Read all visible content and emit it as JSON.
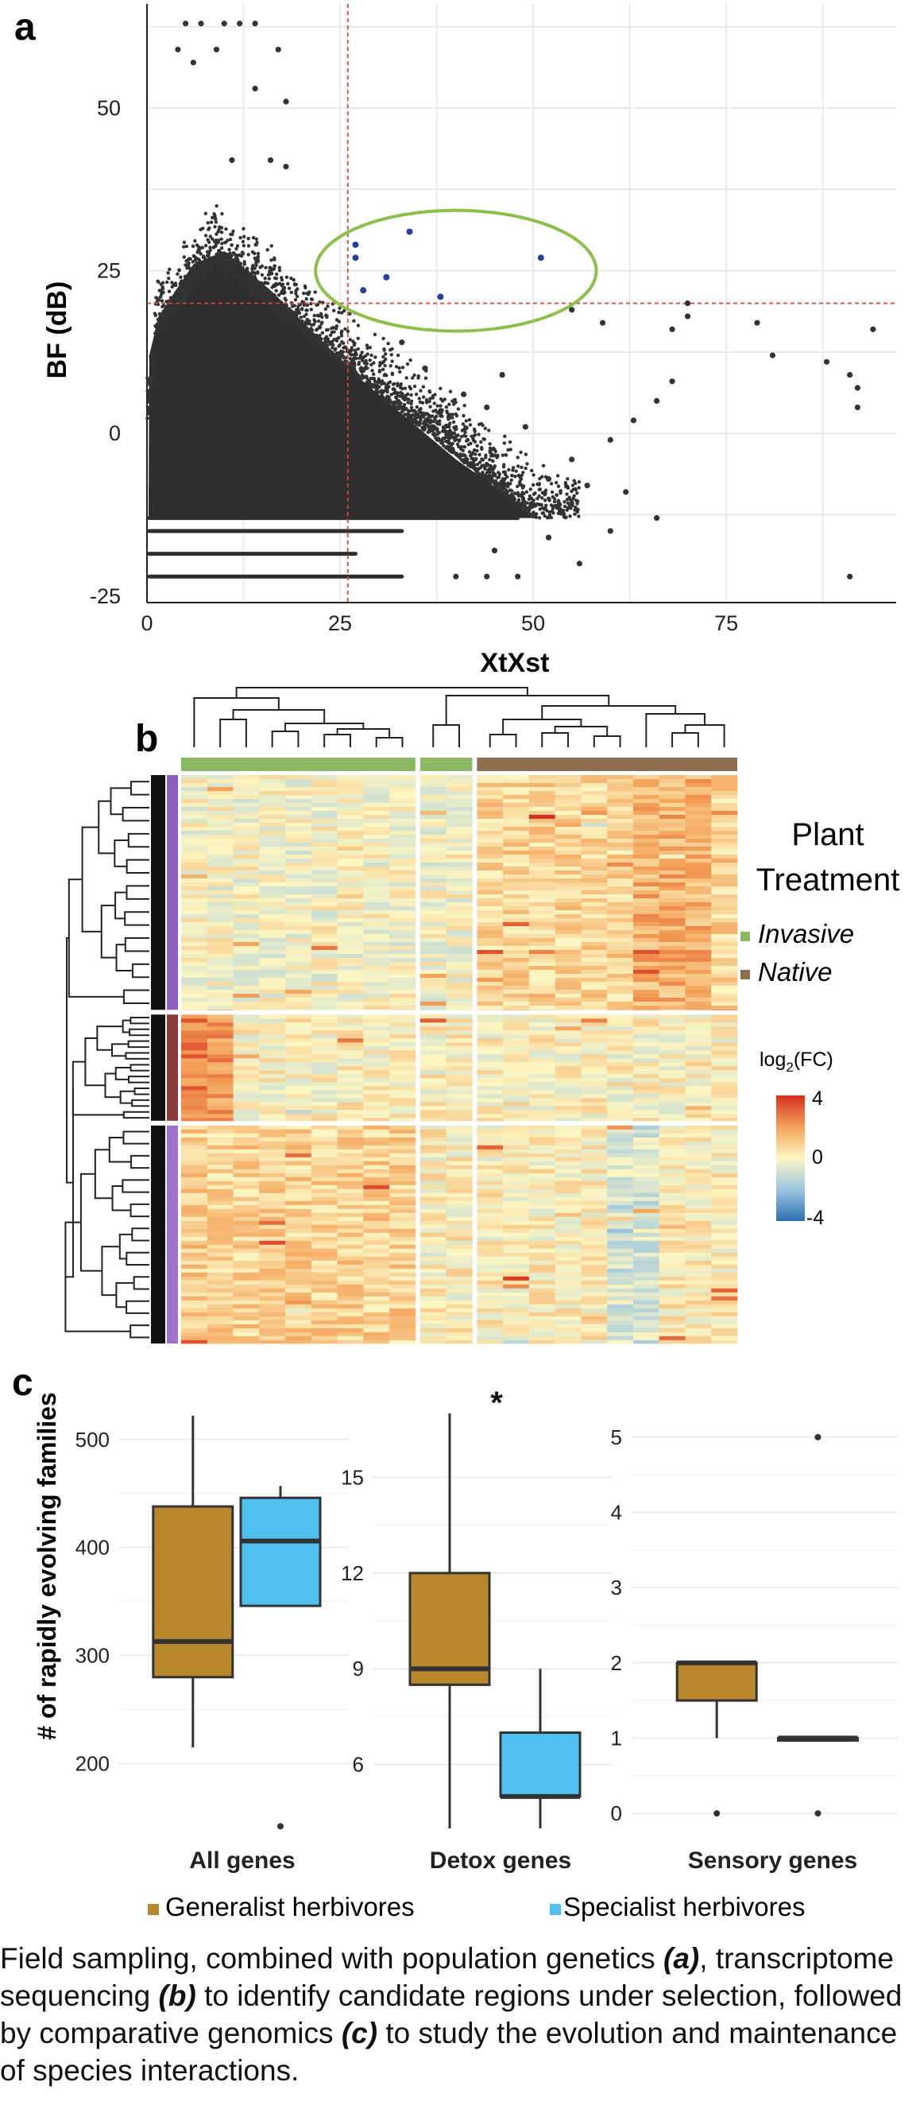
{
  "panel_labels": [
    "a",
    "b",
    "c"
  ],
  "chart_data": [
    {
      "type": "scatter",
      "panel": "a",
      "xlabel": "XtXst",
      "ylabel": "BF (dB)",
      "xlim": [
        0,
        97
      ],
      "ylim": [
        -26,
        66
      ],
      "xticks": [
        0,
        25,
        50,
        75
      ],
      "yticks": [
        -25,
        0,
        25,
        50
      ],
      "grid": true,
      "thresholds": {
        "x": 26,
        "y": 20,
        "color": "#e0433a"
      },
      "highlight_ellipse_color": "#8cc04a",
      "point_color": "#333333",
      "highlight_color": "#2a3f9a",
      "highlighted_points": [
        {
          "x": 27,
          "y": 29
        },
        {
          "x": 27,
          "y": 27
        },
        {
          "x": 28,
          "y": 22
        },
        {
          "x": 31,
          "y": 24
        },
        {
          "x": 34,
          "y": 31
        },
        {
          "x": 38,
          "y": 21
        },
        {
          "x": 51,
          "y": 27
        }
      ],
      "outlier_points": [
        {
          "x": 5,
          "y": 63
        },
        {
          "x": 7,
          "y": 63
        },
        {
          "x": 10,
          "y": 63
        },
        {
          "x": 12,
          "y": 63
        },
        {
          "x": 14,
          "y": 63
        },
        {
          "x": 4,
          "y": 59
        },
        {
          "x": 9,
          "y": 59
        },
        {
          "x": 17,
          "y": 59
        },
        {
          "x": 6,
          "y": 57
        },
        {
          "x": 14,
          "y": 53
        },
        {
          "x": 18,
          "y": 51
        },
        {
          "x": 11,
          "y": 42
        },
        {
          "x": 16,
          "y": 42
        },
        {
          "x": 18,
          "y": 41
        },
        {
          "x": 55,
          "y": 19
        },
        {
          "x": 59,
          "y": 17
        },
        {
          "x": 68,
          "y": 16
        },
        {
          "x": 70,
          "y": 20
        },
        {
          "x": 70,
          "y": 18
        },
        {
          "x": 79,
          "y": 17
        },
        {
          "x": 81,
          "y": 12
        },
        {
          "x": 88,
          "y": 11
        },
        {
          "x": 91,
          "y": 9
        },
        {
          "x": 92,
          "y": 7
        },
        {
          "x": 92,
          "y": 4
        },
        {
          "x": 94,
          "y": 16
        },
        {
          "x": 68,
          "y": 8
        },
        {
          "x": 66,
          "y": 5
        },
        {
          "x": 63,
          "y": 2
        },
        {
          "x": 60,
          "y": -1
        },
        {
          "x": 55,
          "y": -4
        },
        {
          "x": 52,
          "y": -7
        },
        {
          "x": 57,
          "y": -8
        },
        {
          "x": 62,
          "y": -9
        },
        {
          "x": 66,
          "y": -13
        },
        {
          "x": 60,
          "y": -15
        },
        {
          "x": 52,
          "y": -16
        },
        {
          "x": 56,
          "y": -20
        },
        {
          "x": 91,
          "y": -22
        },
        {
          "x": 40,
          "y": -22
        },
        {
          "x": 44,
          "y": -22
        },
        {
          "x": 48,
          "y": -22
        },
        {
          "x": 45,
          "y": -18
        },
        {
          "x": 48,
          "y": -11
        },
        {
          "x": 44,
          "y": 4
        },
        {
          "x": 41,
          "y": 6
        },
        {
          "x": 46,
          "y": 9
        },
        {
          "x": 49,
          "y": 1
        },
        {
          "x": 36,
          "y": 10
        },
        {
          "x": 33,
          "y": 14
        }
      ]
    },
    {
      "type": "heatmap",
      "panel": "b",
      "legend_title": "Plant Treatment",
      "legend_items": [
        {
          "label": "Invasive",
          "color": "#8db863"
        },
        {
          "label": "Native",
          "color": "#8b6f4e"
        }
      ],
      "colorbar_title_pre": "log",
      "colorbar_title_sub": "2",
      "colorbar_title_post": "(FC)",
      "colorbar_ticks": [
        "4",
        "0",
        "-4"
      ],
      "colorbar_range": [
        -4,
        4
      ],
      "column_groups": [
        {
          "label": "Invasive",
          "columns": 9
        },
        {
          "label": "Invasive",
          "columns": 2
        },
        {
          "label": "Native",
          "columns": 10
        }
      ],
      "row_clusters": [
        {
          "color": "#8a5fbf",
          "fraction": 0.42
        },
        {
          "color": "#8a3a3a",
          "fraction": 0.19
        },
        {
          "color": "#9b73c9",
          "fraction": 0.39
        }
      ]
    },
    {
      "type": "box",
      "panel": "c",
      "ylabel": "# of rapidly evolving families",
      "legend": [
        {
          "label": "Generalist herbivores",
          "color": "#b8862b"
        },
        {
          "label": "Specialist herbivores",
          "color": "#4fc1ee"
        }
      ],
      "subplots": [
        {
          "category": "All genes",
          "yticks": [
            200,
            300,
            400,
            500
          ],
          "ylim": [
            140,
            530
          ],
          "boxes": [
            {
              "group": "Generalist herbivores",
              "min": 215,
              "q1": 280,
              "median": 313,
              "q3": 438,
              "max": 522,
              "outliers": []
            },
            {
              "group": "Specialist herbivores",
              "min": 346,
              "q1": 346,
              "median": 406,
              "q3": 446,
              "max": 457,
              "outliers": [
                142
              ]
            }
          ]
        },
        {
          "category": "Detox genes",
          "annotation": "*",
          "yticks": [
            6,
            9,
            12,
            15
          ],
          "ylim": [
            4,
            17.2
          ],
          "boxes": [
            {
              "group": "Generalist herbivores",
              "min": 4,
              "q1": 8.5,
              "median": 9,
              "q3": 12,
              "max": 17,
              "outliers": []
            },
            {
              "group": "Specialist herbivores",
              "min": 4,
              "q1": 5,
              "median": 5,
              "q3": 7,
              "max": 9,
              "outliers": []
            }
          ]
        },
        {
          "category": "Sensory genes",
          "yticks": [
            0,
            1,
            2,
            3,
            4,
            5
          ],
          "ylim": [
            -0.2,
            5.4
          ],
          "boxes": [
            {
              "group": "Generalist herbivores",
              "min": 1,
              "q1": 1.5,
              "median": 2,
              "q3": 2,
              "max": 2,
              "outliers": [
                0
              ]
            },
            {
              "group": "Specialist herbivores",
              "min": 1,
              "q1": 1,
              "median": 1,
              "q3": 1,
              "max": 1,
              "outliers": [
                0,
                5
              ]
            }
          ]
        }
      ]
    }
  ],
  "caption": {
    "t1": "Field sampling, combined with population genetics ",
    "a": "(a)",
    "t2": ", transcriptome sequencing ",
    "b": "(b)",
    "t3": " to identify candidate regions under selection, followed by comparative genomics ",
    "c": "(c)",
    "t4": " to study the evolution and maintenance of species interactions."
  }
}
